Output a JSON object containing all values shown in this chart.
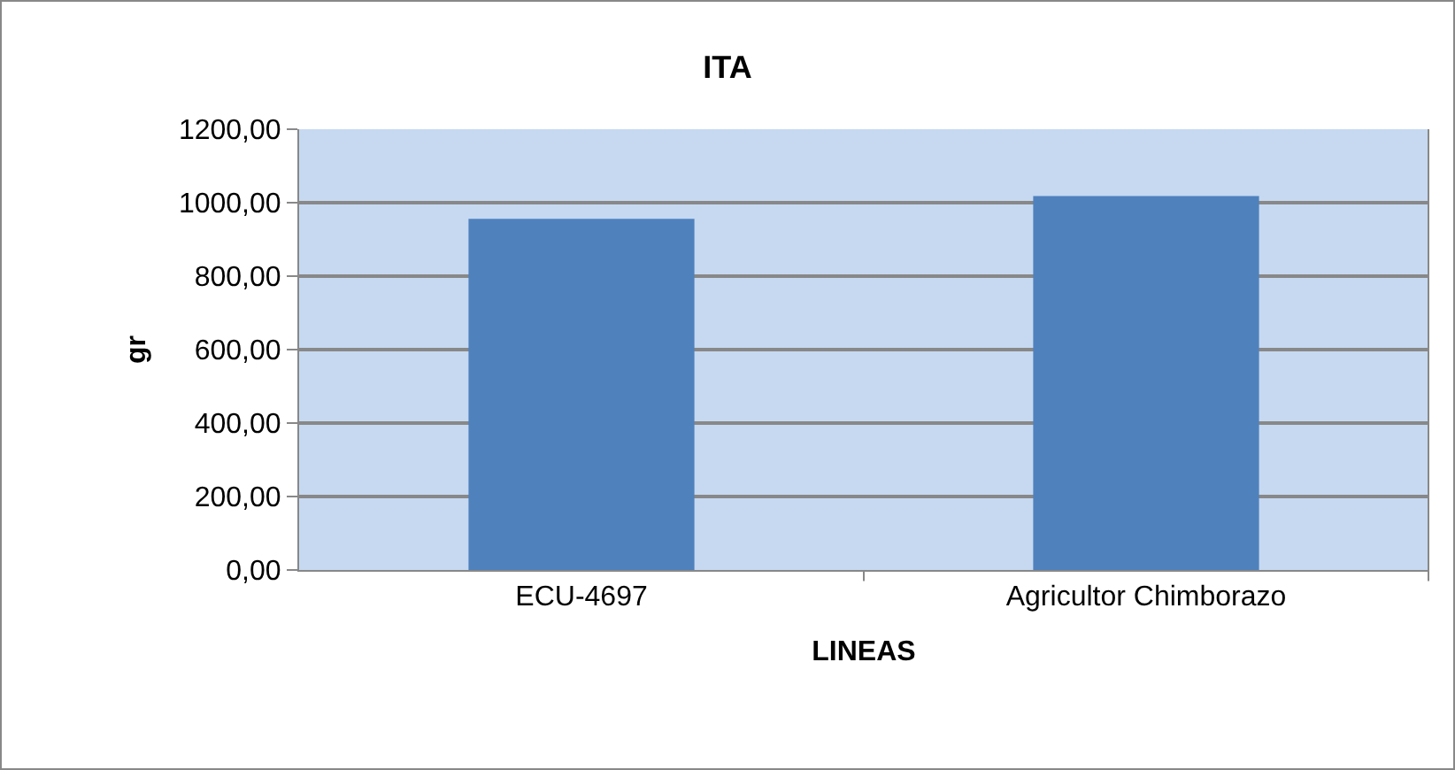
{
  "chart_data": {
    "type": "bar",
    "title": "ITA",
    "xlabel": "LINEAS",
    "ylabel": "gr",
    "categories": [
      "ECU-4697",
      "Agricultor Chimborazo"
    ],
    "values": [
      956,
      1018
    ],
    "color": "#4f81bd",
    "ylim": [
      0,
      1200
    ],
    "yticks": [
      {
        "value": 0,
        "label": "0,00"
      },
      {
        "value": 200,
        "label": "200,00"
      },
      {
        "value": 400,
        "label": "400,00"
      },
      {
        "value": 600,
        "label": "600,00"
      },
      {
        "value": 800,
        "label": "800,00"
      },
      {
        "value": 1000,
        "label": "1000,00"
      },
      {
        "value": 1200,
        "label": "1200,00"
      }
    ],
    "grid": "y",
    "legend": false
  }
}
